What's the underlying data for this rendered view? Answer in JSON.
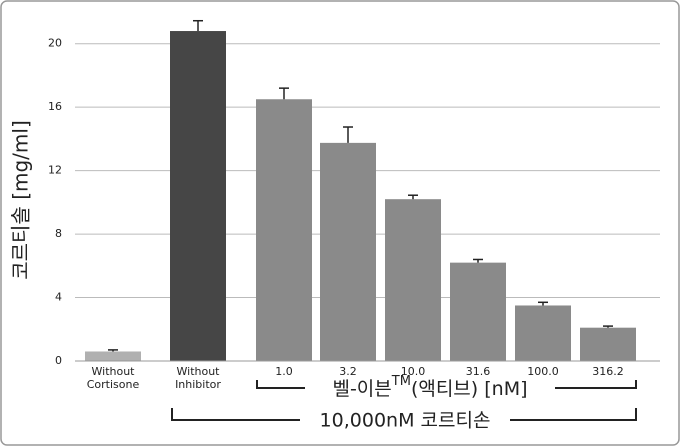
{
  "chart_data": {
    "type": "bar",
    "y_label": "코르티솔 [mg/ml]",
    "categories": [
      "Without Cortisone",
      "Without Inhibitor",
      "1.0",
      "3.2",
      "10.0",
      "31.6",
      "100.0",
      "316.2"
    ],
    "values": [
      0.6,
      20.8,
      16.5,
      13.75,
      10.2,
      6.2,
      3.5,
      2.1
    ],
    "errors": [
      0.1,
      0.65,
      0.7,
      1.0,
      0.25,
      0.2,
      0.2,
      0.1
    ],
    "colors": [
      "#b0b0b0",
      "#464646",
      "#8a8a8a",
      "#8a8a8a",
      "#8a8a8a",
      "#8a8a8a",
      "#8a8a8a",
      "#8a8a8a"
    ],
    "ylim": [
      0,
      22
    ],
    "yticks": [
      0,
      4,
      8,
      12,
      16,
      20
    ],
    "grid": true,
    "annotations": {
      "inhibitor_group": {
        "name": "벨-이븐",
        "mark": "TM",
        "rest": "(액티브) [nM]"
      },
      "cortisone_group": "10,000nM 코르티손"
    }
  }
}
